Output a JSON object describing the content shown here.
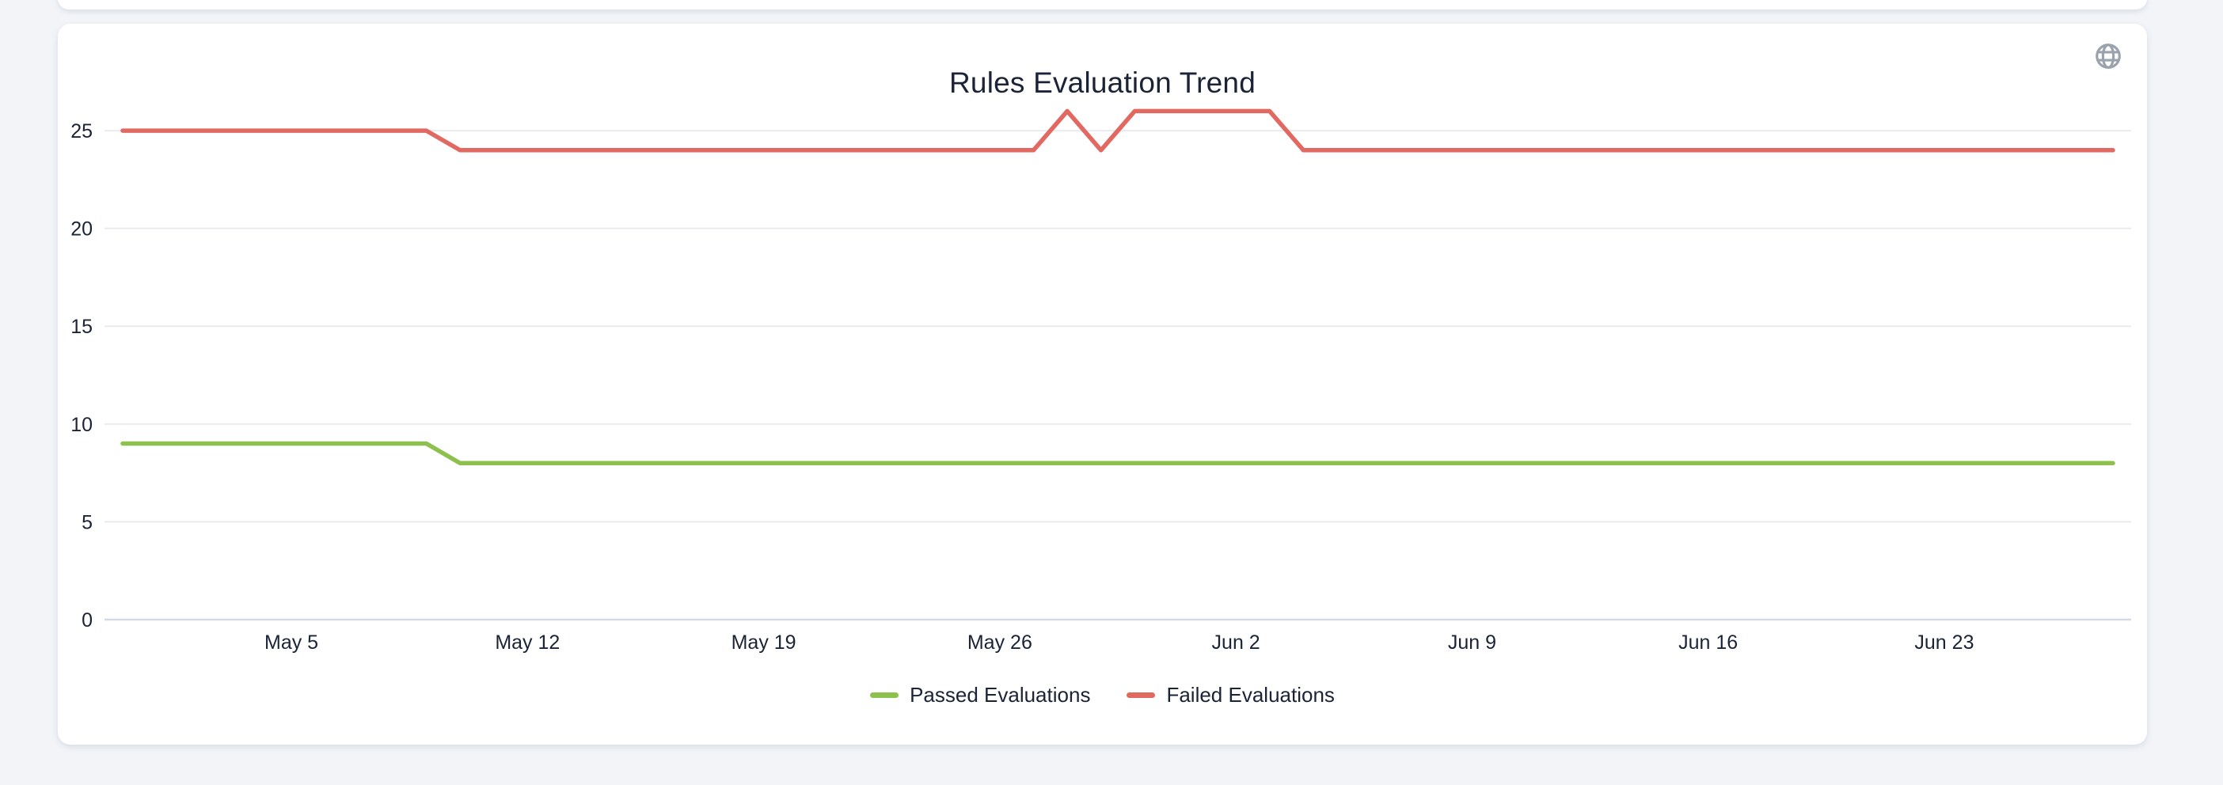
{
  "page": {
    "background": "#f2f4f8"
  },
  "card": {
    "background": "#ffffff"
  },
  "header": {
    "icon": "globe",
    "icon_color": "#9aa2ae"
  },
  "chart_data": {
    "type": "line",
    "title": "Rules Evaluation Trend",
    "xlabel": "",
    "ylabel": "",
    "grid": true,
    "legend_position": "bottom",
    "ylim": [
      0,
      26.5
    ],
    "yticks": [
      0,
      5,
      10,
      15,
      20,
      25
    ],
    "x": [
      "Apr 30",
      "May 1",
      "May 2",
      "May 3",
      "May 4",
      "May 5",
      "May 6",
      "May 7",
      "May 8",
      "May 9",
      "May 10",
      "May 11",
      "May 12",
      "May 13",
      "May 14",
      "May 15",
      "May 16",
      "May 17",
      "May 18",
      "May 19",
      "May 20",
      "May 21",
      "May 22",
      "May 23",
      "May 24",
      "May 25",
      "May 26",
      "May 27",
      "May 28",
      "May 29",
      "May 30",
      "May 31",
      "Jun 1",
      "Jun 2",
      "Jun 3",
      "Jun 4",
      "Jun 5",
      "Jun 6",
      "Jun 7",
      "Jun 8",
      "Jun 9",
      "Jun 10",
      "Jun 11",
      "Jun 12",
      "Jun 13",
      "Jun 14",
      "Jun 15",
      "Jun 16",
      "Jun 17",
      "Jun 18",
      "Jun 19",
      "Jun 20",
      "Jun 21",
      "Jun 22",
      "Jun 23",
      "Jun 24",
      "Jun 25",
      "Jun 26",
      "Jun 27",
      "Jun 28"
    ],
    "x_tick_indices": [
      5,
      12,
      19,
      26,
      33,
      40,
      47,
      54
    ],
    "x_tick_labels": [
      "May 5",
      "May 12",
      "May 19",
      "May 26",
      "Jun 2",
      "Jun 9",
      "Jun 16",
      "Jun 23"
    ],
    "series": [
      {
        "name": "Passed Evaluations",
        "color": "#8ec04d",
        "values": [
          9,
          9,
          9,
          9,
          9,
          9,
          9,
          9,
          9,
          9,
          8,
          8,
          8,
          8,
          8,
          8,
          8,
          8,
          8,
          8,
          8,
          8,
          8,
          8,
          8,
          8,
          8,
          8,
          8,
          8,
          8,
          8,
          8,
          8,
          8,
          8,
          8,
          8,
          8,
          8,
          8,
          8,
          8,
          8,
          8,
          8,
          8,
          8,
          8,
          8,
          8,
          8,
          8,
          8,
          8,
          8,
          8,
          8,
          8,
          8
        ]
      },
      {
        "name": "Failed Evaluations",
        "color": "#e26862",
        "values": [
          25,
          25,
          25,
          25,
          25,
          25,
          25,
          25,
          25,
          25,
          24,
          24,
          24,
          24,
          24,
          24,
          24,
          24,
          24,
          24,
          24,
          24,
          24,
          24,
          24,
          24,
          24,
          24,
          26,
          24,
          26,
          26,
          26,
          26,
          26,
          24,
          24,
          24,
          24,
          24,
          24,
          24,
          24,
          24,
          24,
          24,
          24,
          24,
          24,
          24,
          24,
          24,
          24,
          24,
          24,
          24,
          24,
          24,
          24,
          24
        ]
      }
    ],
    "grid_color": "#e9ebef",
    "axis_line_color": "#d4dbe5"
  }
}
